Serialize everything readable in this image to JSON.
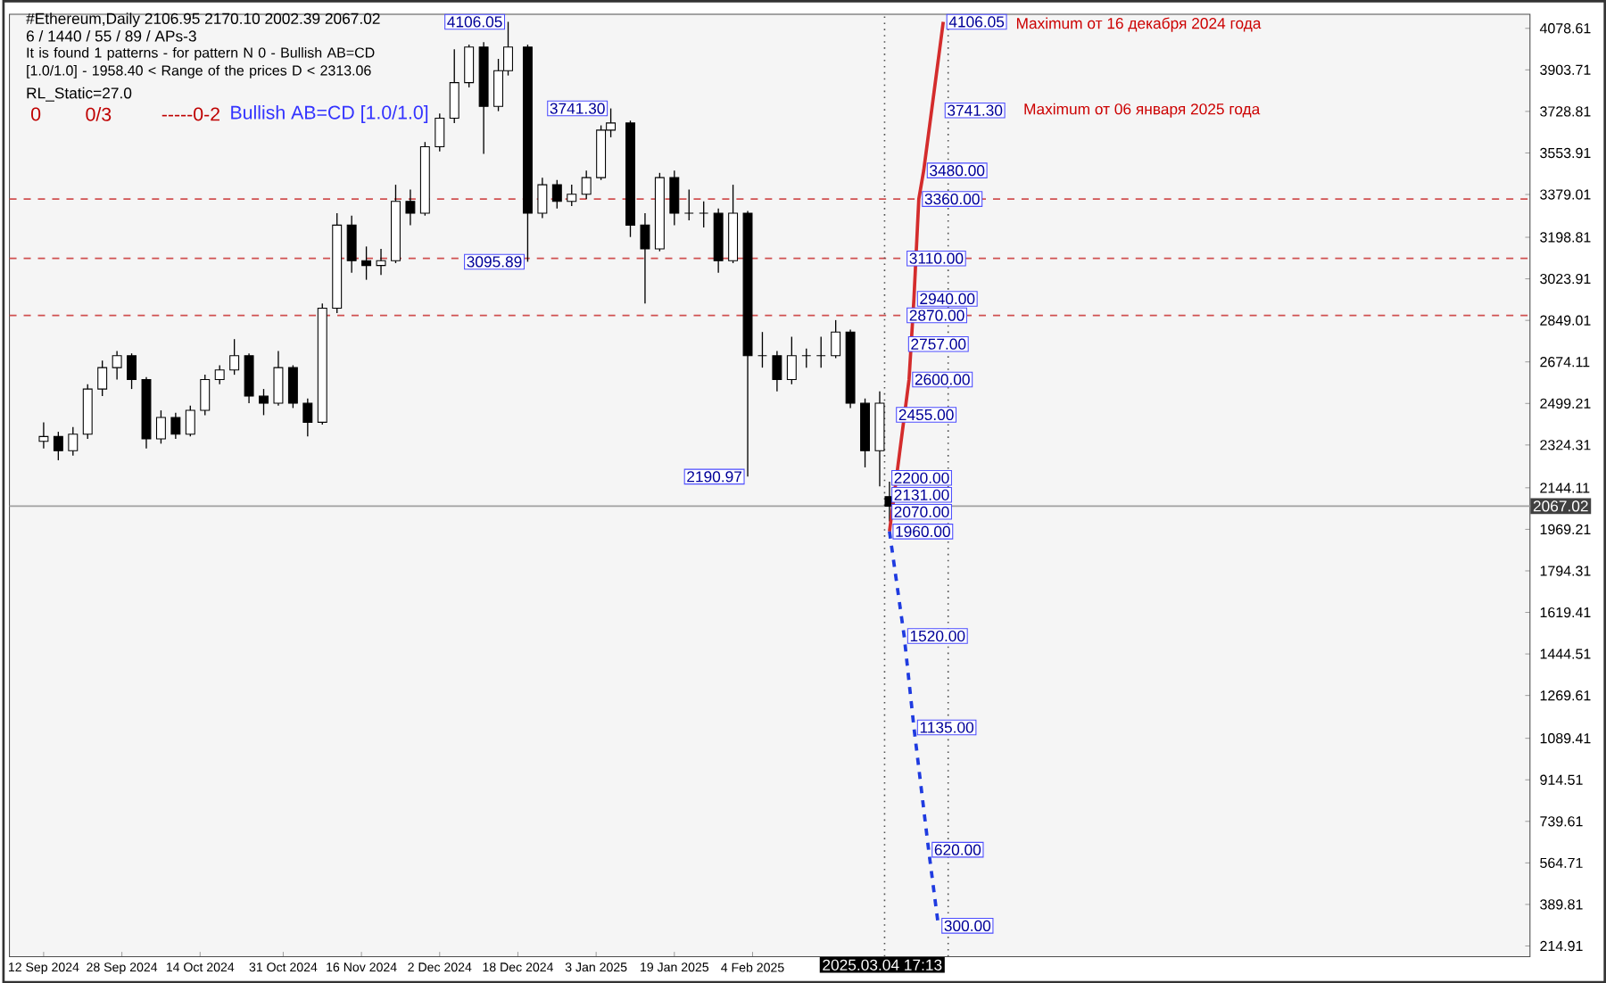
{
  "chart_data": {
    "type": "candlestick",
    "title": "#Ethereum,Daily  2106.95 2170.10 2002.39 2067.02",
    "subtitle": "6 / 1440 / 55 / 89 / APs-3",
    "color": "#000000",
    "x": [
      "2024-09-12",
      "2024-09-15",
      "2024-09-18",
      "2024-09-21",
      "2024-09-24",
      "2024-09-27",
      "2024-09-30",
      "2024-10-03",
      "2024-10-06",
      "2024-10-09",
      "2024-10-12",
      "2024-10-15",
      "2024-10-18",
      "2024-10-21",
      "2024-10-24",
      "2024-10-27",
      "2024-10-30",
      "2024-11-02",
      "2024-11-05",
      "2024-11-08",
      "2024-11-11",
      "2024-11-14",
      "2024-11-17",
      "2024-11-20",
      "2024-11-23",
      "2024-11-26",
      "2024-11-29",
      "2024-12-02",
      "2024-12-05",
      "2024-12-08",
      "2024-12-11",
      "2024-12-14",
      "2024-12-16",
      "2024-12-20",
      "2024-12-23",
      "2024-12-26",
      "2024-12-29",
      "2025-01-01",
      "2025-01-04",
      "2025-01-06",
      "2025-01-10",
      "2025-01-13",
      "2025-01-16",
      "2025-01-19",
      "2025-01-22",
      "2025-01-25",
      "2025-01-28",
      "2025-01-31",
      "2025-02-03",
      "2025-02-06",
      "2025-02-09",
      "2025-02-12",
      "2025-02-15",
      "2025-02-18",
      "2025-02-21",
      "2025-02-24",
      "2025-02-27",
      "2025-03-02",
      "2025-03-04"
    ],
    "ohlc": [
      [
        2340,
        2420,
        2310,
        2360
      ],
      [
        2360,
        2380,
        2260,
        2300
      ],
      [
        2300,
        2400,
        2280,
        2370
      ],
      [
        2370,
        2580,
        2350,
        2560
      ],
      [
        2560,
        2680,
        2530,
        2650
      ],
      [
        2650,
        2720,
        2600,
        2700
      ],
      [
        2700,
        2710,
        2560,
        2600
      ],
      [
        2600,
        2610,
        2310,
        2350
      ],
      [
        2350,
        2470,
        2330,
        2440
      ],
      [
        2440,
        2460,
        2350,
        2370
      ],
      [
        2370,
        2490,
        2360,
        2470
      ],
      [
        2470,
        2620,
        2450,
        2600
      ],
      [
        2600,
        2660,
        2580,
        2640
      ],
      [
        2640,
        2770,
        2620,
        2700
      ],
      [
        2700,
        2710,
        2500,
        2530
      ],
      [
        2530,
        2560,
        2450,
        2500
      ],
      [
        2500,
        2720,
        2490,
        2650
      ],
      [
        2650,
        2660,
        2480,
        2500
      ],
      [
        2500,
        2520,
        2360,
        2420
      ],
      [
        2420,
        2920,
        2410,
        2900
      ],
      [
        2900,
        3300,
        2880,
        3250
      ],
      [
        3250,
        3290,
        3050,
        3100
      ],
      [
        3100,
        3160,
        3020,
        3080
      ],
      [
        3080,
        3150,
        3040,
        3100
      ],
      [
        3100,
        3420,
        3090,
        3350
      ],
      [
        3350,
        3400,
        3250,
        3300
      ],
      [
        3300,
        3600,
        3290,
        3580
      ],
      [
        3580,
        3720,
        3560,
        3700
      ],
      [
        3700,
        3990,
        3680,
        3850
      ],
      [
        3850,
        4010,
        3830,
        4000
      ],
      [
        4000,
        4020,
        3550,
        3750
      ],
      [
        3750,
        3950,
        3730,
        3900
      ],
      [
        3900,
        4106.05,
        3880,
        4000
      ],
      [
        4000,
        4010,
        3095.89,
        3300
      ],
      [
        3300,
        3450,
        3280,
        3420
      ],
      [
        3420,
        3440,
        3320,
        3350
      ],
      [
        3350,
        3420,
        3330,
        3380
      ],
      [
        3380,
        3480,
        3360,
        3450
      ],
      [
        3450,
        3670,
        3440,
        3650
      ],
      [
        3650,
        3741.3,
        3620,
        3680
      ],
      [
        3680,
        3690,
        3200,
        3250
      ],
      [
        3250,
        3300,
        2920,
        3150
      ],
      [
        3150,
        3470,
        3140,
        3450
      ],
      [
        3450,
        3480,
        3250,
        3300
      ],
      [
        3300,
        3400,
        3270,
        3300
      ],
      [
        3300,
        3350,
        3240,
        3300
      ],
      [
        3300,
        3320,
        3050,
        3100
      ],
      [
        3100,
        3420,
        3090,
        3300
      ],
      [
        3300,
        3310,
        2190.97,
        2700
      ],
      [
        2700,
        2800,
        2650,
        2700
      ],
      [
        2700,
        2720,
        2550,
        2600
      ],
      [
        2600,
        2780,
        2580,
        2700
      ],
      [
        2700,
        2730,
        2650,
        2700
      ],
      [
        2700,
        2780,
        2650,
        2700
      ],
      [
        2700,
        2850,
        2690,
        2800
      ],
      [
        2800,
        2810,
        2480,
        2500
      ],
      [
        2500,
        2520,
        2230,
        2300
      ],
      [
        2300,
        2550,
        2150,
        2500
      ],
      [
        2106.95,
        2170.1,
        2002.39,
        2067.02
      ]
    ],
    "series": [
      {
        "type": "line",
        "color": "#d42c2c",
        "line_style": "solid",
        "x": [
          "2025-03-04",
          "2025-03-08",
          "2025-03-09",
          "2025-03-10",
          "2025-03-11",
          "2025-03-15"
        ],
        "values": [
          1960,
          2600,
          2940,
          3360,
          3480,
          4106.05
        ]
      },
      {
        "type": "line",
        "color": "#1f3be0",
        "line_style": "dashed",
        "x": [
          "2025-03-04",
          "2025-03-07",
          "2025-03-09",
          "2025-03-12",
          "2025-03-14"
        ],
        "values": [
          1960,
          1520,
          1135,
          620,
          300
        ]
      }
    ],
    "xlim": [
      "2024-09-05",
      "2025-07-13"
    ],
    "xticks": [
      {
        "value": "2024-09-12",
        "label": "12 Sep 2024"
      },
      {
        "value": "2024-09-28",
        "label": "28 Sep 2024"
      },
      {
        "value": "2024-10-14",
        "label": "14 Oct 2024"
      },
      {
        "value": "2024-10-31",
        "label": "31 Oct 2024"
      },
      {
        "value": "2024-11-16",
        "label": "16 Nov 2024"
      },
      {
        "value": "2024-12-02",
        "label": "2 Dec 2024"
      },
      {
        "value": "2024-12-18",
        "label": "18 Dec 2024"
      },
      {
        "value": "2025-01-03",
        "label": "3 Jan 2025"
      },
      {
        "value": "2025-01-19",
        "label": "19 Jan 2025"
      },
      {
        "value": "2025-02-04",
        "label": "4 Feb 2025"
      }
    ],
    "ylim": [
      170,
      4138
    ],
    "yticks": [
      214.91,
      389.81,
      564.71,
      739.61,
      914.51,
      1089.41,
      1269.61,
      1444.51,
      1619.41,
      1794.31,
      1969.21,
      2144.11,
      2324.31,
      2499.21,
      2674.11,
      2849.01,
      3023.91,
      3198.81,
      3379.01,
      3553.91,
      3728.81,
      3903.71,
      4078.61
    ],
    "ref_lines": [
      {
        "axis": "y",
        "value": 3360,
        "color": "#d05050",
        "line_style": "dashed"
      },
      {
        "axis": "y",
        "value": 3110,
        "label": "3110.00",
        "color": "#d05050",
        "line_style": "dashed"
      },
      {
        "axis": "y",
        "value": 2870,
        "label": "2870.00",
        "color": "#d05050",
        "line_style": "dashed"
      },
      {
        "axis": "y",
        "value": 2067.02,
        "label": "2067.02",
        "color": "#a0a0a0",
        "line_style": "solid"
      },
      {
        "axis": "x",
        "value": "2025-03-03",
        "color": "#505050",
        "line_style": "dotted"
      },
      {
        "axis": "x",
        "value": "2025-03-16",
        "color": "#505050",
        "line_style": "dotted"
      }
    ],
    "annotations": [
      "It is found 1 patterns  -  for pattern N 0 - Bullish AB=CD [1.0/1.0] - 1958.40 < Range of the prices D < 2313.06",
      "RL_Static=27.0",
      "0",
      "0/3",
      "-----0-2",
      "Bullish AB=CD [1.0/1.0]",
      "2025.03.04 17:13",
      {
        "text": "4106.05",
        "x": "2024-12-16",
        "y": 4106.05
      },
      {
        "text": "3741.30",
        "x": "2025-01-06",
        "y": 3741.3
      },
      {
        "text": "3095.89",
        "x": "2024-12-20",
        "y": 3095.89
      },
      {
        "text": "2190.97",
        "x": "2025-02-03",
        "y": 2190.97
      },
      "3741.30",
      "Maximum от 16 декабря 2024 года",
      "Maximum от 06 января 2025 года",
      "2757.00",
      "2455.00",
      "2200.00",
      "2131.00",
      "2070.00",
      {
        "text": "4106.05",
        "x": "2025-03-15",
        "y": 4106.05
      },
      {
        "text": "3480.00",
        "x": "2025-03-11",
        "y": 3480
      },
      {
        "text": "3360.00",
        "x": "2025-03-10",
        "y": 3360
      },
      {
        "text": "2940.00",
        "x": "2025-03-09",
        "y": 2940
      },
      {
        "text": "2600.00",
        "x": "2025-03-08",
        "y": 2600
      },
      {
        "text": "1960.00",
        "x": "2025-03-04",
        "y": 1960
      },
      {
        "text": "1520.00",
        "x": "2025-03-07",
        "y": 1520
      },
      {
        "text": "1135.00",
        "x": "2025-03-09",
        "y": 1135
      },
      {
        "text": "620.00",
        "x": "2025-03-12",
        "y": 620
      },
      {
        "text": "300.00",
        "x": "2025-03-14",
        "y": 300
      }
    ]
  }
}
